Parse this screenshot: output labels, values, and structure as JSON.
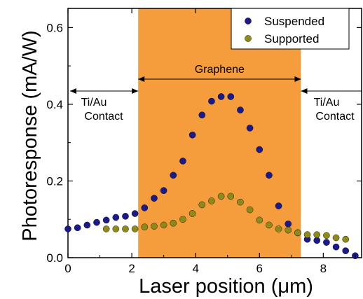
{
  "chart_data": {
    "type": "scatter",
    "xlabel": "Laser position (μm)",
    "ylabel": "Photoresponse (mA/W)",
    "xlim": [
      0,
      9.2
    ],
    "ylim": [
      0,
      0.65
    ],
    "xticks": [
      0,
      2,
      4,
      6,
      8
    ],
    "xtick_labels": [
      "0",
      "2",
      "4",
      "6",
      "8"
    ],
    "yticks": [
      0.0,
      0.2,
      0.4,
      0.6
    ],
    "ytick_labels": [
      "0.0",
      "0.2",
      "0.4",
      "0.6"
    ],
    "grid": false,
    "legend_position": "top-right",
    "shaded_region": {
      "label": "Graphene",
      "x_range": [
        2.2,
        7.3
      ],
      "color": "#f59c3c"
    },
    "annotations": [
      {
        "text_line1": "Ti/Au",
        "text_line2": "Contact",
        "side": "left",
        "x_range": [
          0,
          2.2
        ]
      },
      {
        "text_line1": "Ti/Au",
        "text_line2": "Contact",
        "side": "right",
        "x_range": [
          7.3,
          9.2
        ]
      }
    ],
    "series": [
      {
        "name": "Suspended",
        "color": "#1a1a8c",
        "x": [
          0.0,
          0.3,
          0.6,
          0.9,
          1.2,
          1.5,
          1.8,
          2.1,
          2.4,
          2.7,
          3.0,
          3.3,
          3.6,
          3.9,
          4.2,
          4.5,
          4.8,
          5.1,
          5.4,
          5.7,
          6.0,
          6.3,
          6.6,
          6.9,
          7.2,
          7.5,
          7.8,
          8.1,
          8.4,
          8.7,
          9.0
        ],
        "y": [
          0.075,
          0.078,
          0.085,
          0.092,
          0.098,
          0.105,
          0.108,
          0.115,
          0.13,
          0.155,
          0.175,
          0.215,
          0.252,
          0.32,
          0.372,
          0.408,
          0.42,
          0.42,
          0.385,
          0.338,
          0.282,
          0.215,
          0.135,
          0.088,
          0.065,
          0.048,
          0.045,
          0.04,
          0.028,
          0.018,
          0.005
        ]
      },
      {
        "name": "Supported",
        "color": "#8e8a18",
        "x": [
          1.2,
          1.5,
          1.8,
          2.1,
          2.4,
          2.7,
          3.0,
          3.3,
          3.6,
          3.9,
          4.2,
          4.5,
          4.8,
          5.1,
          5.4,
          5.7,
          6.0,
          6.3,
          6.6,
          6.9,
          7.2,
          7.5,
          7.8,
          8.1,
          8.4,
          8.7
        ],
        "y": [
          0.075,
          0.075,
          0.075,
          0.075,
          0.08,
          0.082,
          0.085,
          0.09,
          0.1,
          0.115,
          0.138,
          0.148,
          0.16,
          0.16,
          0.145,
          0.125,
          0.098,
          0.085,
          0.075,
          0.072,
          0.065,
          0.06,
          0.06,
          0.058,
          0.052,
          0.048
        ]
      }
    ]
  }
}
